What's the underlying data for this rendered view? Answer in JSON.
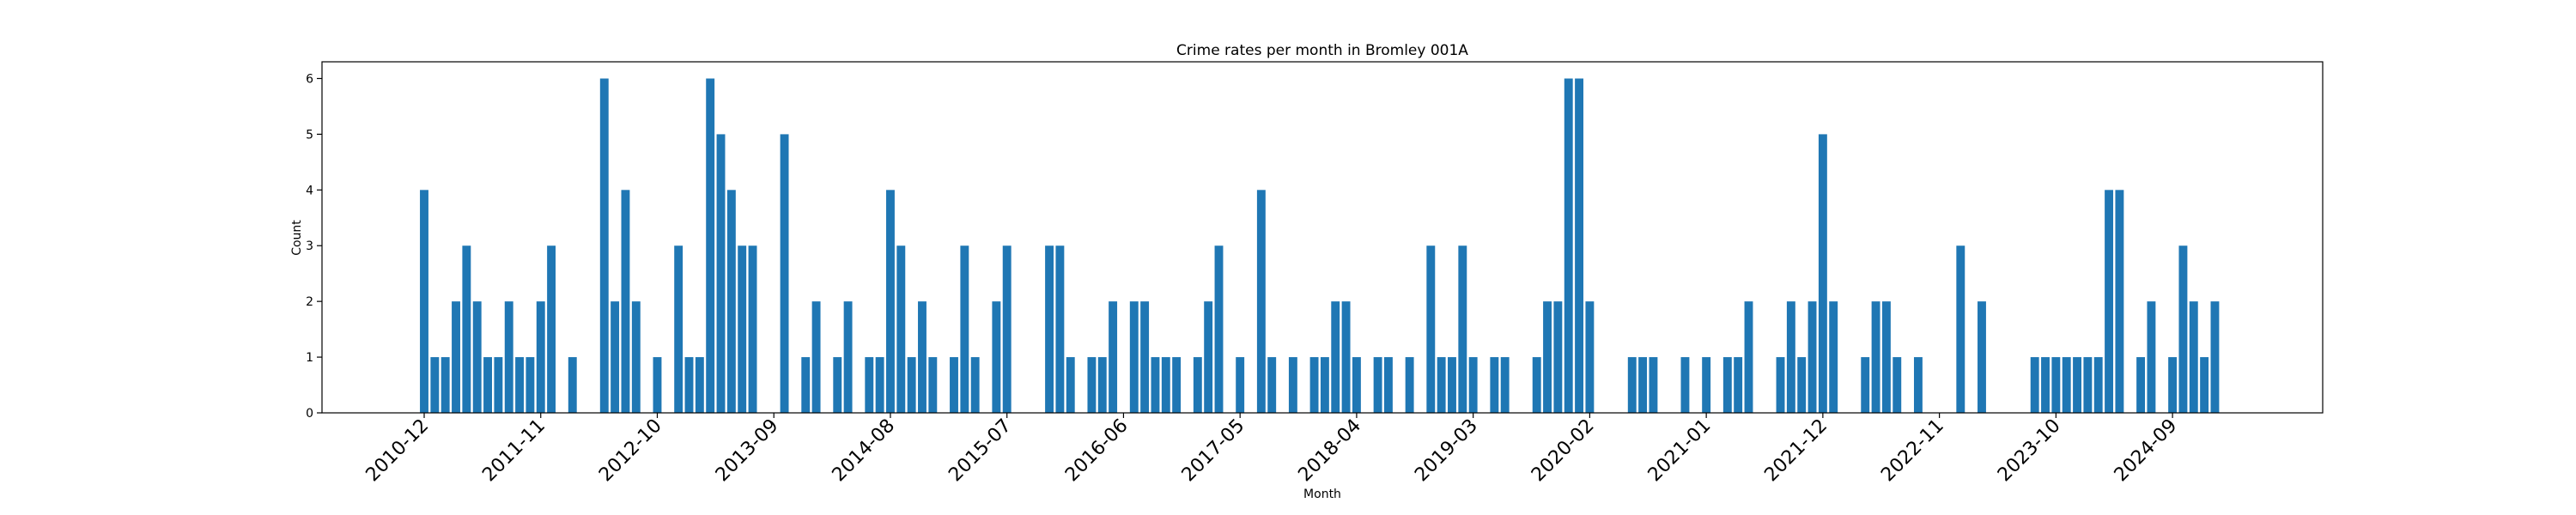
{
  "chart_data": {
    "type": "bar",
    "title": "Crime rates per month in Bromley 001A",
    "xlabel": "Month",
    "ylabel": "Count",
    "ylim": [
      0,
      6.3
    ],
    "yticks": [
      0,
      1,
      2,
      3,
      4,
      5,
      6
    ],
    "xticks": [
      "2010-12",
      "2011-11",
      "2012-10",
      "2013-09",
      "2014-08",
      "2015-07",
      "2016-06",
      "2017-05",
      "2018-04",
      "2019-03",
      "2020-02",
      "2021-01",
      "2021-12",
      "2022-11",
      "2023-10",
      "2024-09"
    ],
    "grid": false,
    "legend": "none",
    "bar_color": "#1f77b4",
    "points": [
      {
        "x": "2010-12",
        "y": 4
      },
      {
        "x": "2011-01",
        "y": 1
      },
      {
        "x": "2011-02",
        "y": 1
      },
      {
        "x": "2011-03",
        "y": 2
      },
      {
        "x": "2011-04",
        "y": 3
      },
      {
        "x": "2011-05",
        "y": 2
      },
      {
        "x": "2011-06",
        "y": 1
      },
      {
        "x": "2011-07",
        "y": 1
      },
      {
        "x": "2011-08",
        "y": 2
      },
      {
        "x": "2011-09",
        "y": 1
      },
      {
        "x": "2011-10",
        "y": 1
      },
      {
        "x": "2011-11",
        "y": 2
      },
      {
        "x": "2011-12",
        "y": 3
      },
      {
        "x": "2012-02",
        "y": 1
      },
      {
        "x": "2012-05",
        "y": 6
      },
      {
        "x": "2012-06",
        "y": 2
      },
      {
        "x": "2012-07",
        "y": 4
      },
      {
        "x": "2012-08",
        "y": 2
      },
      {
        "x": "2012-10",
        "y": 1
      },
      {
        "x": "2012-12",
        "y": 3
      },
      {
        "x": "2013-01",
        "y": 1
      },
      {
        "x": "2013-02",
        "y": 1
      },
      {
        "x": "2013-03",
        "y": 6
      },
      {
        "x": "2013-04",
        "y": 5
      },
      {
        "x": "2013-05",
        "y": 4
      },
      {
        "x": "2013-06",
        "y": 3
      },
      {
        "x": "2013-07",
        "y": 3
      },
      {
        "x": "2013-10",
        "y": 5
      },
      {
        "x": "2013-12",
        "y": 1
      },
      {
        "x": "2014-01",
        "y": 2
      },
      {
        "x": "2014-03",
        "y": 1
      },
      {
        "x": "2014-04",
        "y": 2
      },
      {
        "x": "2014-06",
        "y": 1
      },
      {
        "x": "2014-07",
        "y": 1
      },
      {
        "x": "2014-08",
        "y": 4
      },
      {
        "x": "2014-09",
        "y": 3
      },
      {
        "x": "2014-10",
        "y": 1
      },
      {
        "x": "2014-11",
        "y": 2
      },
      {
        "x": "2014-12",
        "y": 1
      },
      {
        "x": "2015-02",
        "y": 1
      },
      {
        "x": "2015-03",
        "y": 3
      },
      {
        "x": "2015-04",
        "y": 1
      },
      {
        "x": "2015-06",
        "y": 2
      },
      {
        "x": "2015-07",
        "y": 3
      },
      {
        "x": "2015-11",
        "y": 3
      },
      {
        "x": "2015-12",
        "y": 3
      },
      {
        "x": "2016-01",
        "y": 1
      },
      {
        "x": "2016-03",
        "y": 1
      },
      {
        "x": "2016-04",
        "y": 1
      },
      {
        "x": "2016-05",
        "y": 2
      },
      {
        "x": "2016-07",
        "y": 2
      },
      {
        "x": "2016-08",
        "y": 2
      },
      {
        "x": "2016-09",
        "y": 1
      },
      {
        "x": "2016-10",
        "y": 1
      },
      {
        "x": "2016-11",
        "y": 1
      },
      {
        "x": "2017-01",
        "y": 1
      },
      {
        "x": "2017-02",
        "y": 2
      },
      {
        "x": "2017-03",
        "y": 3
      },
      {
        "x": "2017-05",
        "y": 1
      },
      {
        "x": "2017-07",
        "y": 4
      },
      {
        "x": "2017-08",
        "y": 1
      },
      {
        "x": "2017-10",
        "y": 1
      },
      {
        "x": "2017-12",
        "y": 1
      },
      {
        "x": "2018-01",
        "y": 1
      },
      {
        "x": "2018-02",
        "y": 2
      },
      {
        "x": "2018-03",
        "y": 2
      },
      {
        "x": "2018-04",
        "y": 1
      },
      {
        "x": "2018-06",
        "y": 1
      },
      {
        "x": "2018-07",
        "y": 1
      },
      {
        "x": "2018-09",
        "y": 1
      },
      {
        "x": "2018-11",
        "y": 3
      },
      {
        "x": "2018-12",
        "y": 1
      },
      {
        "x": "2019-01",
        "y": 1
      },
      {
        "x": "2019-02",
        "y": 3
      },
      {
        "x": "2019-03",
        "y": 1
      },
      {
        "x": "2019-05",
        "y": 1
      },
      {
        "x": "2019-06",
        "y": 1
      },
      {
        "x": "2019-09",
        "y": 1
      },
      {
        "x": "2019-10",
        "y": 2
      },
      {
        "x": "2019-11",
        "y": 2
      },
      {
        "x": "2019-12",
        "y": 6
      },
      {
        "x": "2020-01",
        "y": 6
      },
      {
        "x": "2020-02",
        "y": 2
      },
      {
        "x": "2020-06",
        "y": 1
      },
      {
        "x": "2020-07",
        "y": 1
      },
      {
        "x": "2020-08",
        "y": 1
      },
      {
        "x": "2020-11",
        "y": 1
      },
      {
        "x": "2021-01",
        "y": 1
      },
      {
        "x": "2021-03",
        "y": 1
      },
      {
        "x": "2021-04",
        "y": 1
      },
      {
        "x": "2021-05",
        "y": 2
      },
      {
        "x": "2021-08",
        "y": 1
      },
      {
        "x": "2021-09",
        "y": 2
      },
      {
        "x": "2021-10",
        "y": 1
      },
      {
        "x": "2021-11",
        "y": 2
      },
      {
        "x": "2021-12",
        "y": 5
      },
      {
        "x": "2022-01",
        "y": 2
      },
      {
        "x": "2022-04",
        "y": 1
      },
      {
        "x": "2022-05",
        "y": 2
      },
      {
        "x": "2022-06",
        "y": 2
      },
      {
        "x": "2022-07",
        "y": 1
      },
      {
        "x": "2022-09",
        "y": 1
      },
      {
        "x": "2023-01",
        "y": 3
      },
      {
        "x": "2023-03",
        "y": 2
      },
      {
        "x": "2023-08",
        "y": 1
      },
      {
        "x": "2023-09",
        "y": 1
      },
      {
        "x": "2023-10",
        "y": 1
      },
      {
        "x": "2023-11",
        "y": 1
      },
      {
        "x": "2023-12",
        "y": 1
      },
      {
        "x": "2024-01",
        "y": 1
      },
      {
        "x": "2024-02",
        "y": 1
      },
      {
        "x": "2024-03",
        "y": 4
      },
      {
        "x": "2024-04",
        "y": 4
      },
      {
        "x": "2024-06",
        "y": 1
      },
      {
        "x": "2024-07",
        "y": 2
      },
      {
        "x": "2024-09",
        "y": 1
      },
      {
        "x": "2024-10",
        "y": 3
      },
      {
        "x": "2024-11",
        "y": 2
      },
      {
        "x": "2024-12",
        "y": 1
      },
      {
        "x": "2025-01",
        "y": 2
      }
    ]
  }
}
